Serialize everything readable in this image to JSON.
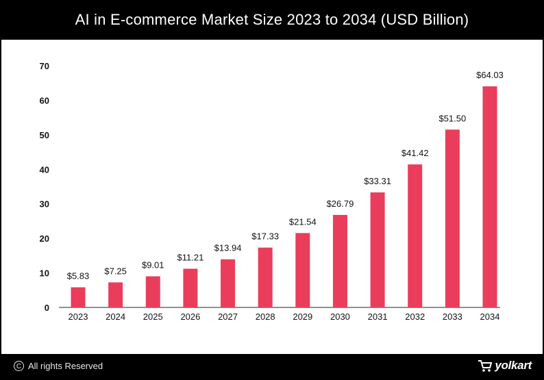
{
  "title": "AI in E-commerce Market Size 2023 to 2034 (USD Billion)",
  "footer": {
    "copyright_text": "All rights Reserved",
    "brand": "yolkart"
  },
  "colors": {
    "bar": "#ea3d5c",
    "background": "#000000",
    "panel": "#ffffff"
  },
  "chart_data": {
    "type": "bar",
    "title": "AI in E-commerce Market Size 2023 to 2034 (USD Billion)",
    "categories": [
      "2023",
      "2024",
      "2025",
      "2026",
      "2027",
      "2028",
      "2029",
      "2030",
      "2031",
      "2032",
      "2033",
      "2034"
    ],
    "values": [
      5.83,
      7.25,
      9.01,
      11.21,
      13.94,
      17.33,
      21.54,
      26.79,
      33.31,
      41.42,
      51.5,
      64.03
    ],
    "value_labels": [
      "$5.83",
      "$7.25",
      "$9.01",
      "$11.21",
      "$13.94",
      "$17.33",
      "$21.54",
      "$26.79",
      "$33.31",
      "$41.42",
      "$51.50",
      "$64.03"
    ],
    "y_ticks": [
      "0",
      "10",
      "20",
      "30",
      "40",
      "50",
      "60",
      "70"
    ],
    "ylim": [
      0,
      70
    ],
    "xlabel": "",
    "ylabel": "",
    "grid": false
  }
}
